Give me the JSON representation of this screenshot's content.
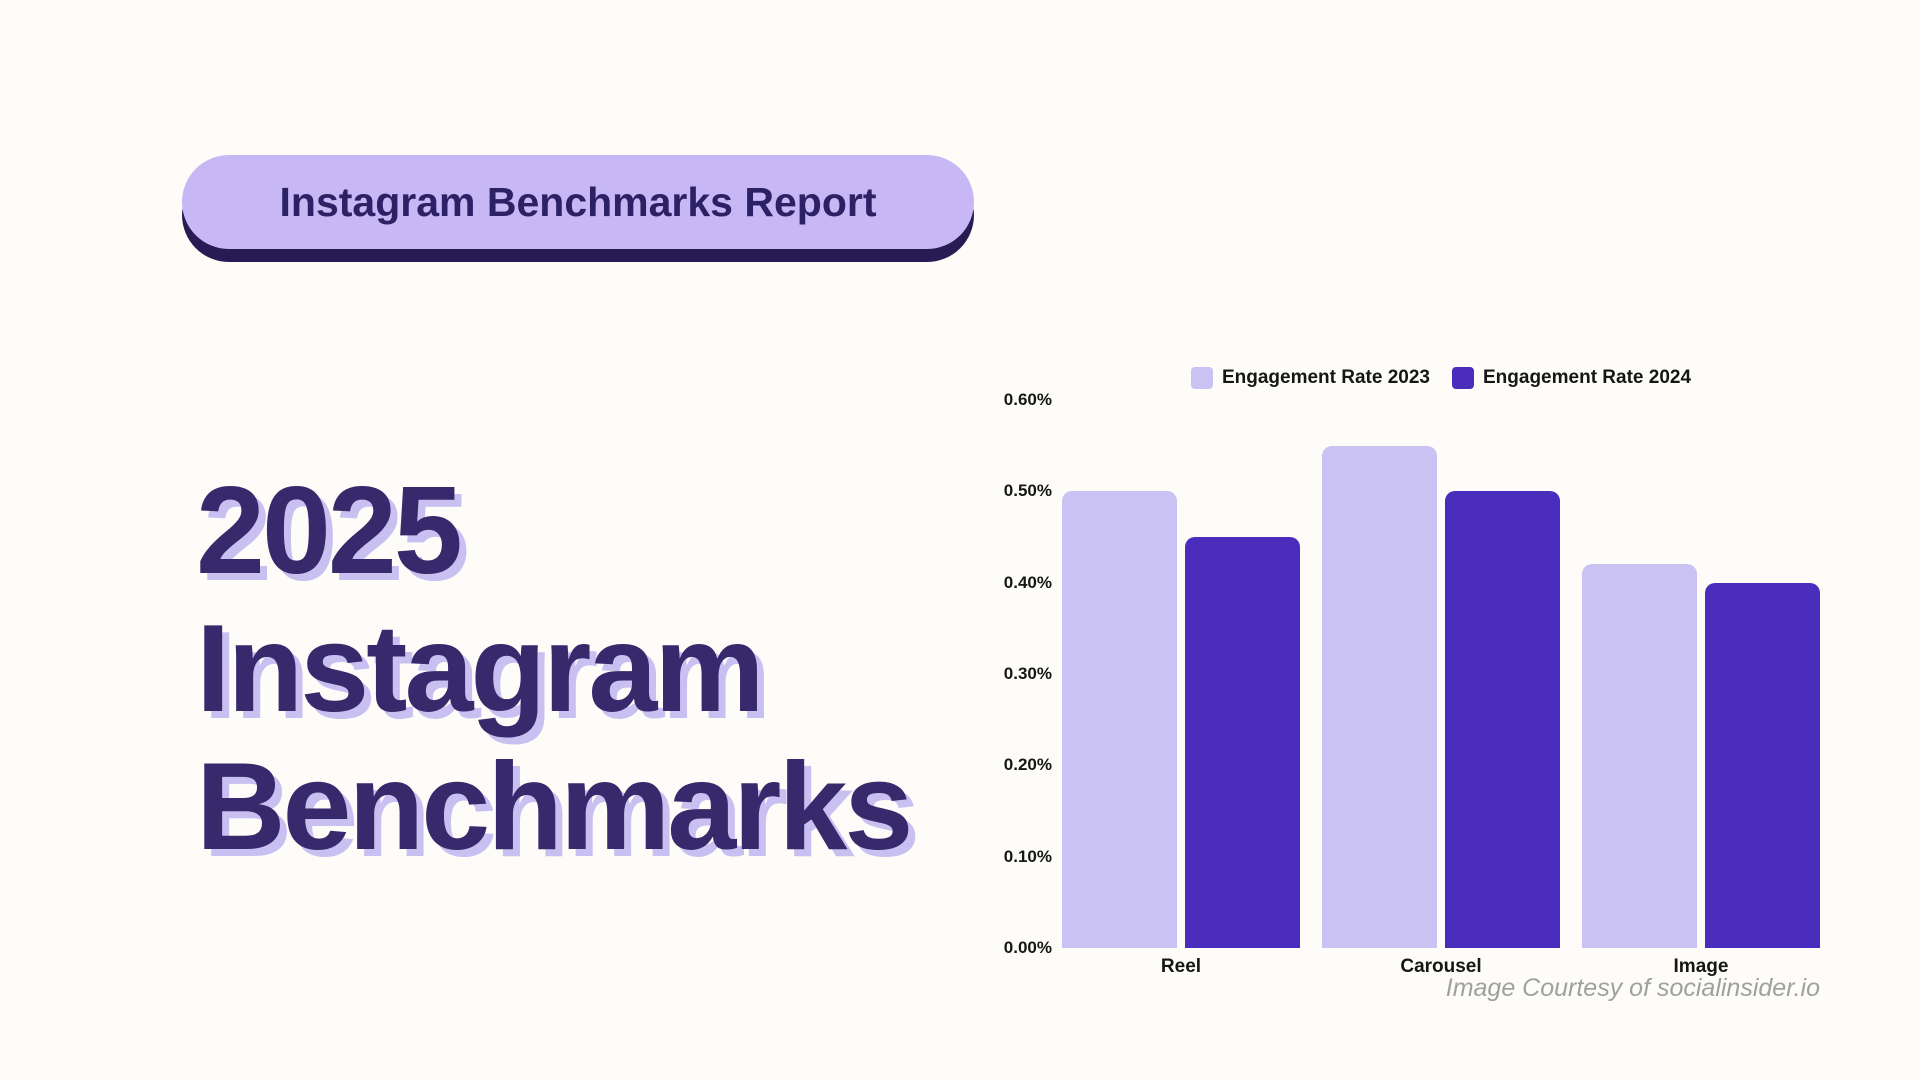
{
  "page": {
    "background": "#fdfcf8"
  },
  "badge": {
    "label": "Instagram Benchmarks Report",
    "bg": "#c7b8f5",
    "text_color": "#2d2166",
    "shadow_color": "#281a52"
  },
  "title": {
    "lines": [
      "2025",
      "Instagram",
      "Benchmarks"
    ],
    "color": "#37296b",
    "shadow_color": "#c9c0f2"
  },
  "attribution": "Image Courtesy of socialinsider.io",
  "chart_data": {
    "type": "bar",
    "title": "",
    "xlabel": "",
    "ylabel": "",
    "categories": [
      "Reel",
      "Carousel",
      "Image"
    ],
    "series": [
      {
        "name": "Engagement Rate 2023",
        "color": "#cbc2f4",
        "values": [
          0.5,
          0.55,
          0.42
        ]
      },
      {
        "name": "Engagement Rate 2024",
        "color": "#4b2dbe",
        "values": [
          0.45,
          0.5,
          0.4
        ]
      }
    ],
    "ylim": [
      0,
      0.6
    ],
    "yticks": [
      "0.00%",
      "0.10%",
      "0.20%",
      "0.30%",
      "0.40%",
      "0.50%",
      "0.60%"
    ],
    "grid": false,
    "legend_position": "top",
    "value_unit": "%"
  }
}
